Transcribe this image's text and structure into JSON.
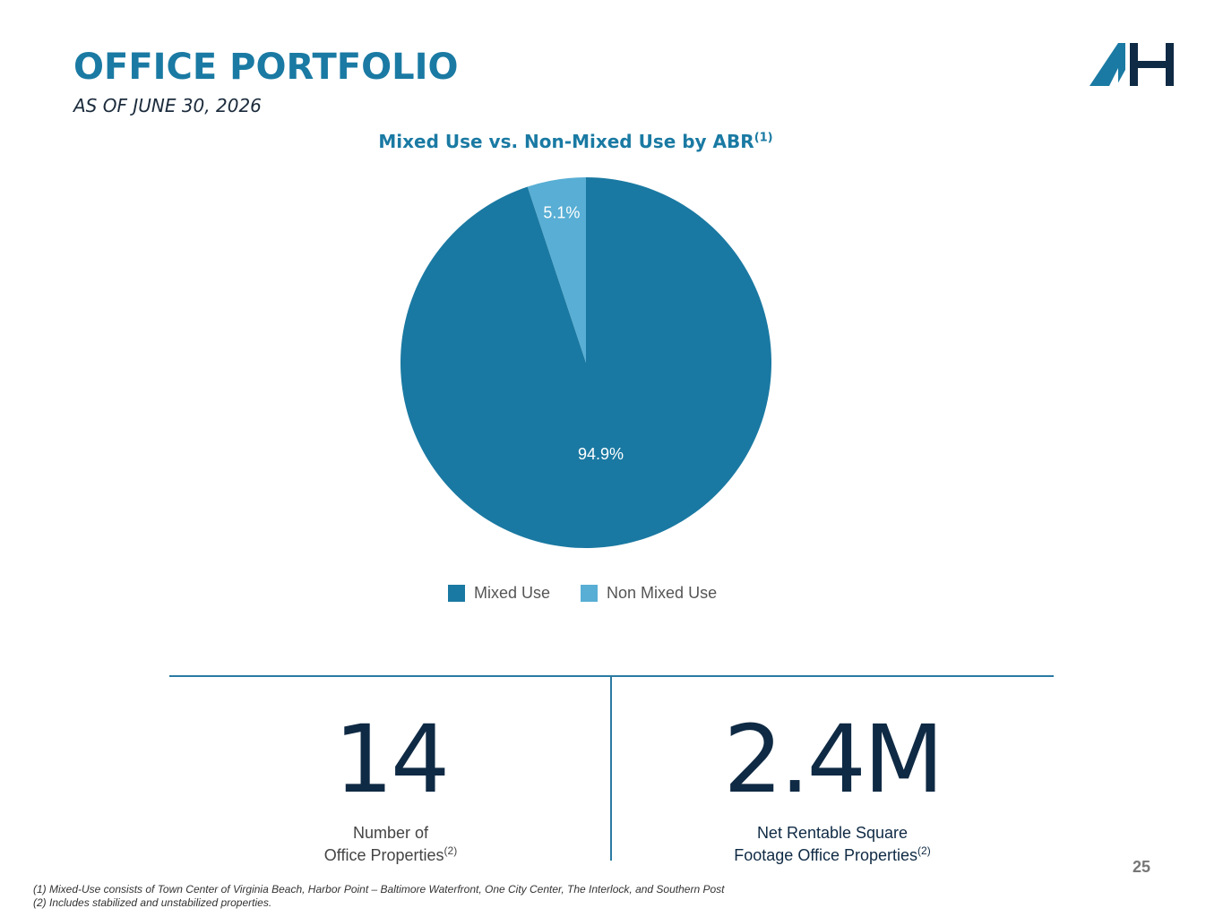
{
  "header": {
    "title": "OFFICE PORTFOLIO",
    "subtitle": "AS OF JUNE 30, 2026"
  },
  "logo": {
    "icon": "ah-logo-icon",
    "colors": [
      "#1a7aa3",
      "#0f2a44"
    ]
  },
  "chart_data": {
    "type": "pie",
    "title": "Mixed Use vs. Non-Mixed Use by ABR",
    "title_superscript": "(1)",
    "slices": [
      {
        "name": "Mixed Use",
        "value": 94.9,
        "label": "94.9%",
        "color": "#1a79a2"
      },
      {
        "name": "Non Mixed Use",
        "value": 5.1,
        "label": "5.1%",
        "color": "#58aed4"
      }
    ],
    "legend_position": "bottom"
  },
  "stats": [
    {
      "value": "14",
      "label_line1": "Number of",
      "label_line2": "Office Properties",
      "sup": "(2)",
      "label_color": "#444444"
    },
    {
      "value": "2.4M",
      "label_line1": "Net Rentable Square",
      "label_line2": "Footage Office Properties",
      "sup": "(2)",
      "label_color": "#0f2a44"
    }
  ],
  "page_number": "25",
  "footnotes": [
    "(1) Mixed-Use consists of Town Center of Virginia Beach, Harbor Point – Baltimore Waterfront, One City Center, The Interlock, and Southern Post",
    "(2) Includes stabilized and unstabilized properties."
  ]
}
